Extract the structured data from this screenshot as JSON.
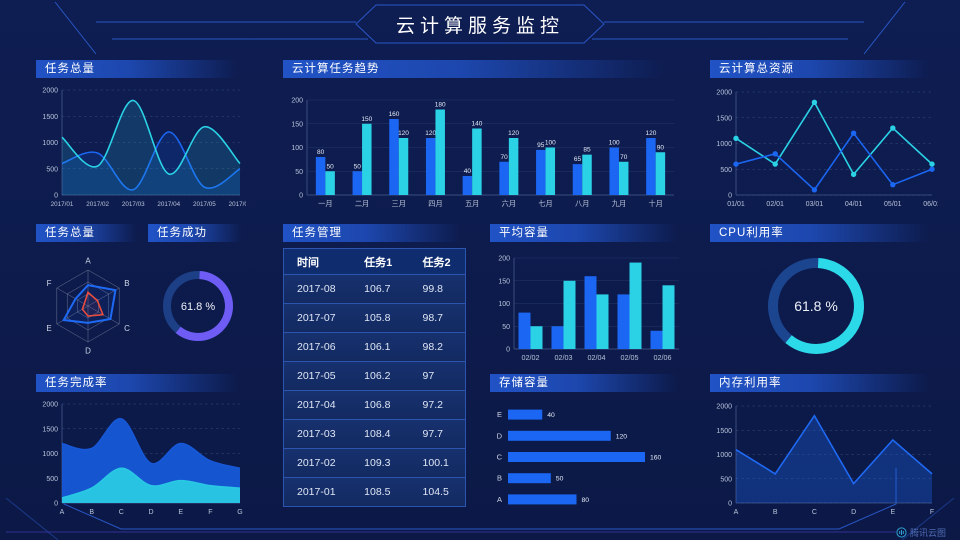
{
  "header": {
    "title": "云计算服务监控"
  },
  "watermark": {
    "label": "腾讯云图"
  },
  "colors": {
    "background": "#0d1b4c",
    "accent_blue": "#1b66f2",
    "accent_cyan": "#2bd2e6",
    "accent_purple": "#6e5cf5",
    "accent_red": "#e84c3d",
    "frame_line": "#2e62d9",
    "title_bar_blue": "#2153c6"
  },
  "chart_data": [
    {
      "id": "task-total-line",
      "title": "任务总量",
      "type": "line",
      "x": [
        "2017/01",
        "2017/02",
        "2017/03",
        "2017/04",
        "2017/05",
        "2017/06"
      ],
      "yticks": [
        0,
        500,
        1000,
        1500,
        2000
      ],
      "ylim": [
        0,
        2000
      ],
      "grid": "dashed",
      "series": [
        {
          "name": "blue",
          "color": "#1b66f2",
          "smooth": true,
          "area": true,
          "values": [
            600,
            800,
            100,
            1200,
            150,
            500
          ]
        },
        {
          "name": "cyan",
          "color": "#2bd2e6",
          "smooth": true,
          "area": true,
          "values": [
            1100,
            550,
            1800,
            400,
            1300,
            600
          ]
        }
      ]
    },
    {
      "id": "cloud-task-trend",
      "title": "云计算任务趋势",
      "type": "bar",
      "categories": [
        "一月",
        "二月",
        "三月",
        "四月",
        "五月",
        "六月",
        "七月",
        "八月",
        "九月",
        "十月"
      ],
      "yticks": [
        0,
        50,
        100,
        150,
        200
      ],
      "ylim": [
        0,
        200
      ],
      "grid": "solid",
      "data_labels": true,
      "series": [
        {
          "name": "blue",
          "color": "#1b66f2",
          "values": [
            80,
            50,
            160,
            120,
            40,
            70,
            95,
            65,
            100,
            120
          ]
        },
        {
          "name": "cyan",
          "color": "#2bd2e6",
          "values": [
            50,
            150,
            120,
            180,
            140,
            120,
            100,
            85,
            70,
            90
          ]
        }
      ]
    },
    {
      "id": "cloud-total-resources",
      "title": "云计算总资源",
      "type": "line",
      "x": [
        "01/01",
        "02/01",
        "03/01",
        "04/01",
        "05/01",
        "06/01"
      ],
      "yticks": [
        0,
        500,
        1000,
        1500,
        2000
      ],
      "ylim": [
        0,
        2000
      ],
      "grid": "dashed",
      "series": [
        {
          "name": "cyan",
          "color": "#2bd2e6",
          "marker": true,
          "values": [
            1100,
            600,
            1800,
            400,
            1300,
            600
          ]
        },
        {
          "name": "blue",
          "color": "#1b66f2",
          "marker": true,
          "values": [
            600,
            800,
            100,
            1200,
            200,
            500
          ]
        }
      ]
    },
    {
      "id": "task-total-radar",
      "title": "任务总量",
      "type": "radar",
      "axes": [
        "A",
        "B",
        "C",
        "D",
        "E",
        "F"
      ],
      "max": 100,
      "series": [
        {
          "name": "outer",
          "color": "#1e6af5",
          "values": [
            58,
            88,
            72,
            47,
            78,
            40
          ]
        },
        {
          "name": "inner",
          "color": "#e84c3d",
          "values": [
            38,
            30,
            48,
            28,
            18,
            12
          ]
        }
      ]
    },
    {
      "id": "task-success-gauge",
      "title": "任务成功",
      "type": "donut",
      "percent": 61.8,
      "label": "61.8 %",
      "color": "#6e5cf5",
      "track": "#1c3f86"
    },
    {
      "id": "task-management-table",
      "title": "任务管理",
      "type": "table",
      "columns": [
        "时间",
        "任务1",
        "任务2"
      ],
      "rows": [
        [
          "2017-08",
          "106.7",
          "99.8"
        ],
        [
          "2017-07",
          "105.8",
          "98.7"
        ],
        [
          "2017-06",
          "106.1",
          "98.2"
        ],
        [
          "2017-05",
          "106.2",
          "97"
        ],
        [
          "2017-04",
          "106.8",
          "97.2"
        ],
        [
          "2017-03",
          "108.4",
          "97.7"
        ],
        [
          "2017-02",
          "109.3",
          "100.1"
        ],
        [
          "2017-01",
          "108.5",
          "104.5"
        ]
      ]
    },
    {
      "id": "average-capacity",
      "title": "平均容量",
      "type": "bar",
      "categories": [
        "02/02",
        "02/03",
        "02/04",
        "02/05",
        "02/06"
      ],
      "yticks": [
        0,
        50,
        100,
        150,
        200
      ],
      "ylim": [
        0,
        200
      ],
      "grid": "solid",
      "data_labels": false,
      "series": [
        {
          "name": "blue",
          "color": "#1b66f2",
          "values": [
            80,
            50,
            160,
            120,
            40
          ]
        },
        {
          "name": "cyan",
          "color": "#2bd2e6",
          "values": [
            50,
            150,
            120,
            190,
            140
          ]
        }
      ]
    },
    {
      "id": "cpu-utilization",
      "title": "CPU利用率",
      "type": "donut",
      "percent": 61.8,
      "label": "61.8 %",
      "color": "#2bd9e8",
      "track": "#1c4590"
    },
    {
      "id": "task-completion",
      "title": "任务完成率",
      "type": "line",
      "x": [
        "A",
        "B",
        "C",
        "D",
        "E",
        "F",
        "G"
      ],
      "yticks": [
        0,
        500,
        1000,
        1500,
        2000
      ],
      "ylim": [
        0,
        2000
      ],
      "grid": "dashed",
      "series": [
        {
          "name": "blue-area",
          "color": "#1658d8",
          "smooth": true,
          "area": true,
          "areaOpacity": 0.95,
          "values": [
            1200,
            1100,
            1700,
            800,
            1200,
            850,
            700
          ]
        },
        {
          "name": "cyan-area",
          "color": "#29c9e4",
          "smooth": true,
          "area": true,
          "areaOpacity": 0.95,
          "values": [
            100,
            300,
            700,
            350,
            450,
            350,
            300
          ]
        }
      ]
    },
    {
      "id": "storage-capacity",
      "title": "存储容量",
      "type": "hbar",
      "categories": [
        "E",
        "D",
        "C",
        "B",
        "A"
      ],
      "values": [
        40,
        120,
        160,
        50,
        80
      ],
      "xmax": 160,
      "color": "#1b66f2",
      "data_labels": true
    },
    {
      "id": "memory-utilization",
      "title": "内存利用率",
      "type": "line",
      "x": [
        "A",
        "B",
        "C",
        "D",
        "E",
        "F"
      ],
      "yticks": [
        0,
        500,
        1000,
        1500,
        2000
      ],
      "ylim": [
        0,
        2000
      ],
      "grid": "dashed",
      "series": [
        {
          "name": "blue",
          "color": "#1e6af5",
          "area": true,
          "areaOpacity": 0.3,
          "values": [
            1100,
            600,
            1800,
            400,
            1300,
            600
          ]
        }
      ]
    }
  ]
}
